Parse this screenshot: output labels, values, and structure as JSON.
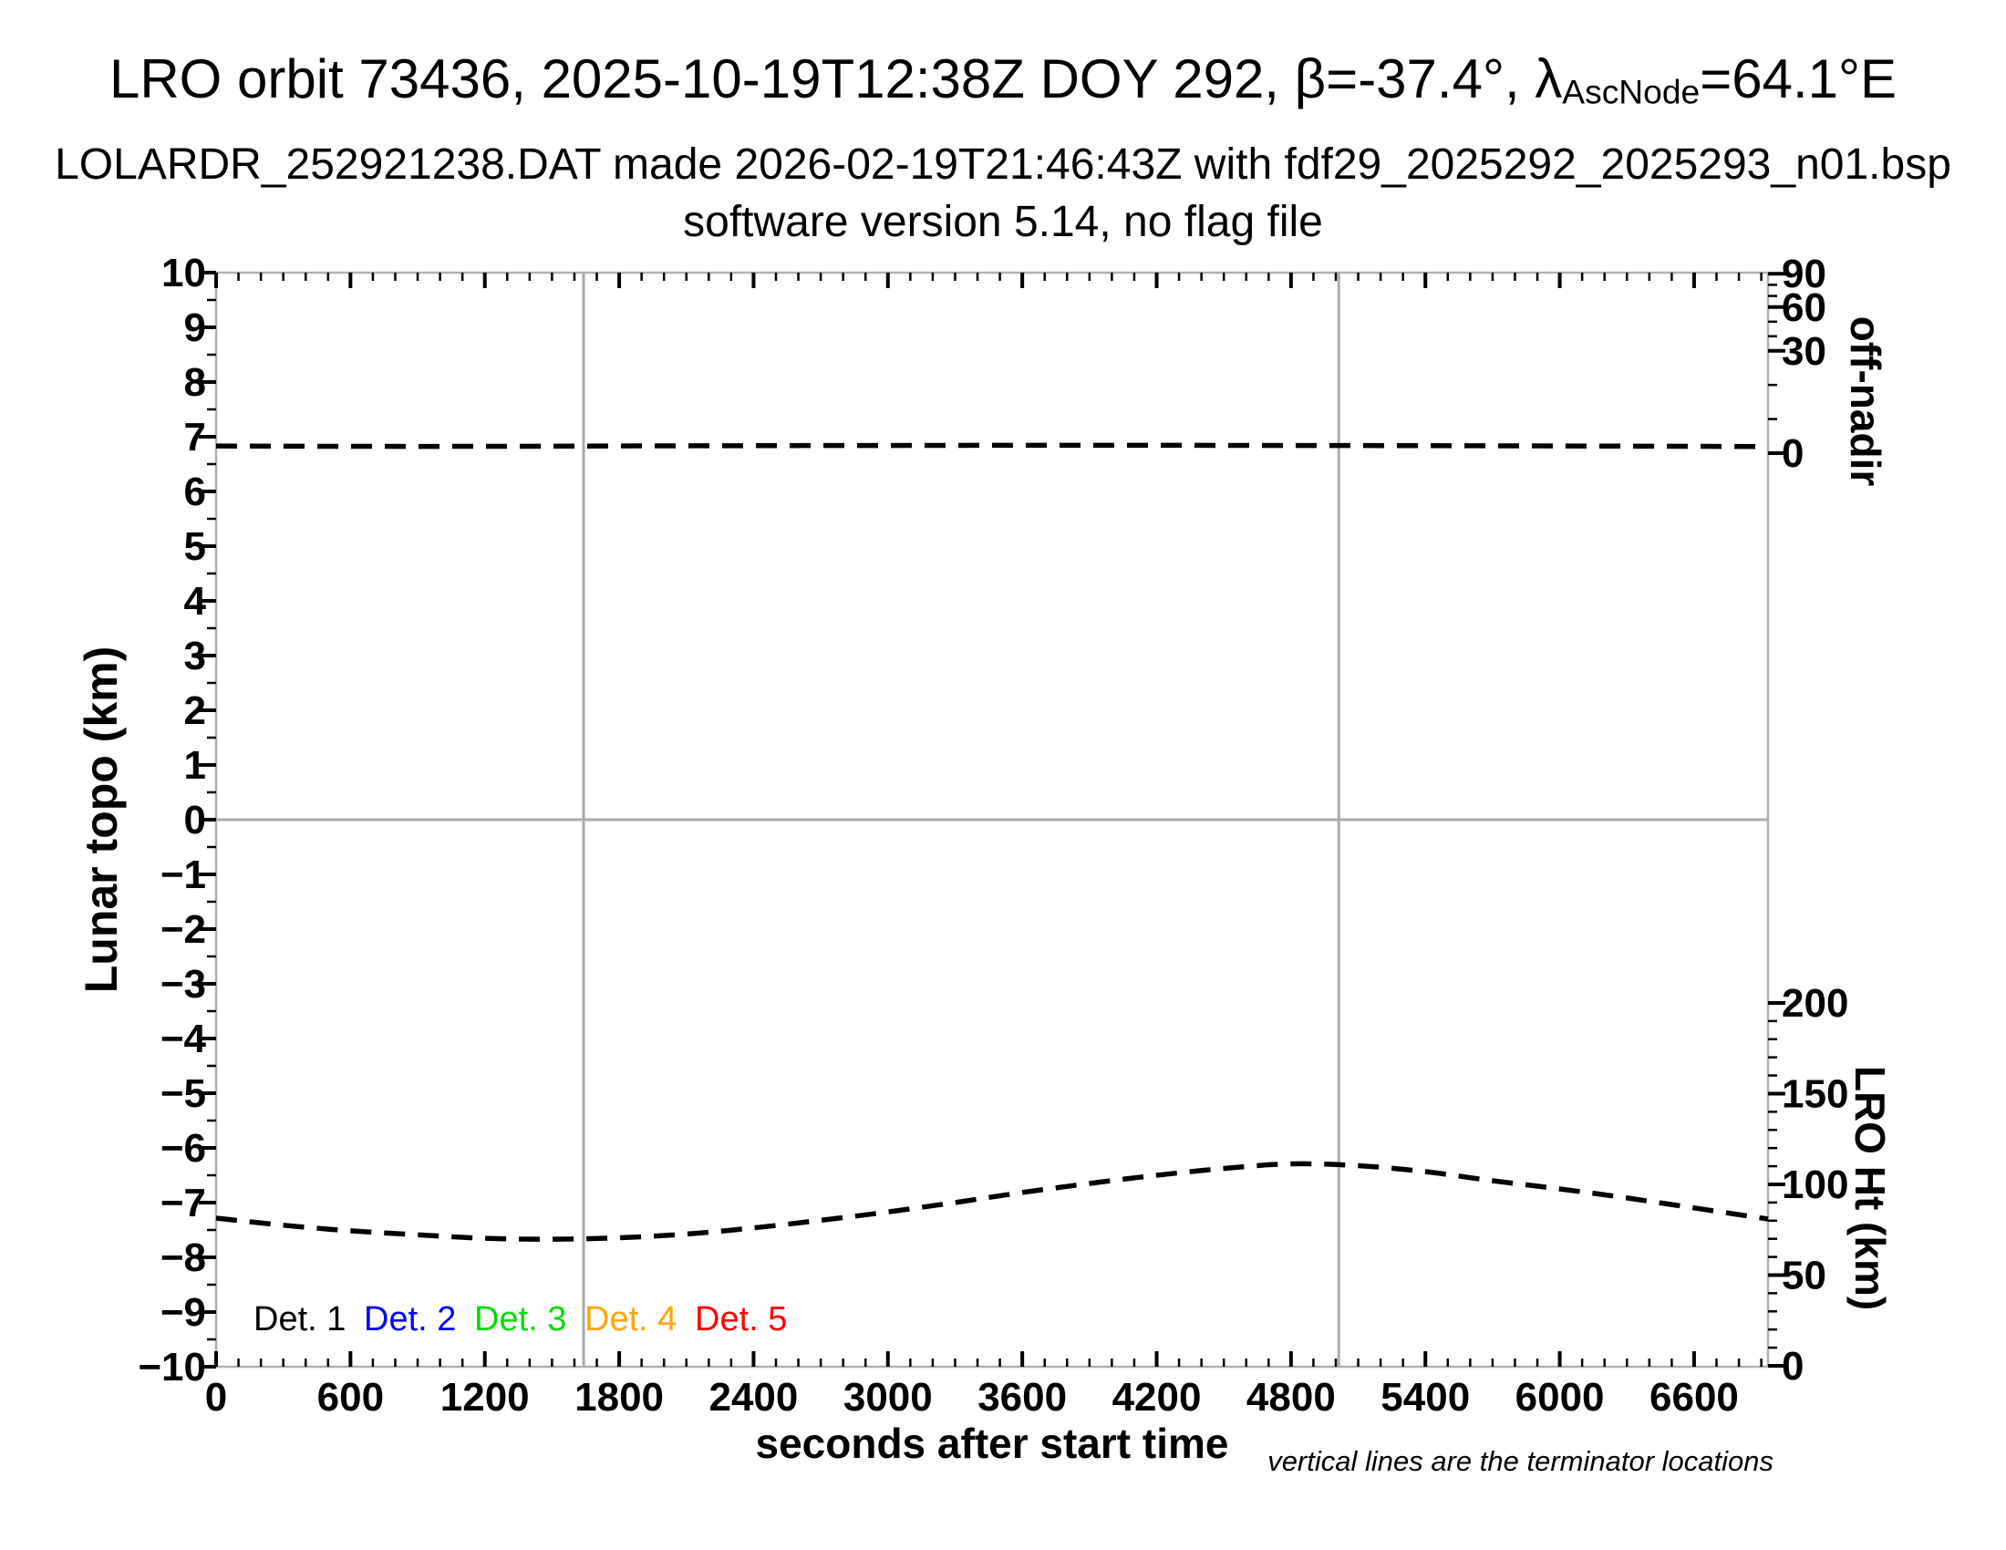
{
  "title": {
    "main": "LRO orbit 73436, 2025-10-19T12:38Z DOY 292, β=-37.4°, λ",
    "subscript": "AscNode",
    "suffix": "=64.1°E"
  },
  "subtitle1": "LOLARDR_252921238.DAT made 2026-02-19T21:46:43Z with fdf29_2025292_2025293_n01.bsp",
  "subtitle2": "software version 5.14, no flag file",
  "footnote": "vertical lines are the terminator locations",
  "legend": {
    "items": [
      {
        "label": "Det. 1",
        "color": "#000000"
      },
      {
        "label": "Det. 2",
        "color": "#0000ff"
      },
      {
        "label": "Det. 3",
        "color": "#00dd00"
      },
      {
        "label": "Det. 4",
        "color": "#ffa500"
      },
      {
        "label": "Det. 5",
        "color": "#ff0000"
      }
    ]
  },
  "colors": {
    "curve": "#000000",
    "axis_line": "#b0b0b0",
    "reference_line": "#aaaaaa",
    "tick": "#000000"
  },
  "chart_data": {
    "type": "line",
    "x": {
      "label": "seconds after start time",
      "min": 0,
      "max": 6930,
      "major_ticks": [
        0,
        600,
        1200,
        1800,
        2400,
        3000,
        3600,
        4200,
        4800,
        5400,
        6000,
        6600
      ],
      "minor_step": 100
    },
    "y_left": {
      "label": "Lunar topo (km)",
      "min": -10,
      "max": 10,
      "major_step": 1,
      "minor_step": 0.5,
      "zero_line": 0
    },
    "y_right_off_nadir": {
      "label": "off-nadir",
      "ticks": [
        {
          "value": 90,
          "topo": 9.98
        },
        {
          "value": 60,
          "topo": 9.37
        },
        {
          "value": 30,
          "topo": 8.57
        },
        {
          "value": 0,
          "topo": 6.7
        }
      ],
      "minor_values": [
        80,
        70,
        50,
        40,
        20,
        10
      ]
    },
    "y_right_lro": {
      "label": "LRO Ht (km)",
      "ticks": [
        200,
        150,
        100,
        50,
        0
      ],
      "km0_topo": -9.983,
      "topo_per_km": 0.033167,
      "minor_step_km": 10
    },
    "terminators_s": [
      1641,
      5013
    ],
    "terminator_note": "vertical lines are the terminator locations",
    "series": [
      {
        "name": "off-nadir angle",
        "axis": "off_nadir",
        "style": "dashed",
        "x": [
          0,
          600,
          1200,
          1800,
          2400,
          3000,
          3600,
          4200,
          4800,
          5400,
          6000,
          6600,
          6930
        ],
        "values_deg": [
          2.1,
          2.0,
          2.0,
          2.1,
          2.2,
          2.25,
          2.3,
          2.3,
          2.25,
          2.2,
          2.1,
          2.0,
          1.9
        ]
      },
      {
        "name": "LRO height",
        "axis": "lro",
        "style": "dashed",
        "x": [
          0,
          300,
          600,
          900,
          1200,
          1500,
          1800,
          2100,
          2400,
          2700,
          3000,
          3300,
          3600,
          3900,
          4200,
          4500,
          4800,
          5100,
          5400,
          5700,
          6000,
          6300,
          6600,
          6930
        ],
        "values_km": [
          81.4,
          77.5,
          74.4,
          72.2,
          70.3,
          69.8,
          70.6,
          72.6,
          76.0,
          80.2,
          84.8,
          90.0,
          95.5,
          100.5,
          105.0,
          108.8,
          111.3,
          110.3,
          107.0,
          102.0,
          97.5,
          92.5,
          87.0,
          80.9
        ]
      }
    ]
  }
}
